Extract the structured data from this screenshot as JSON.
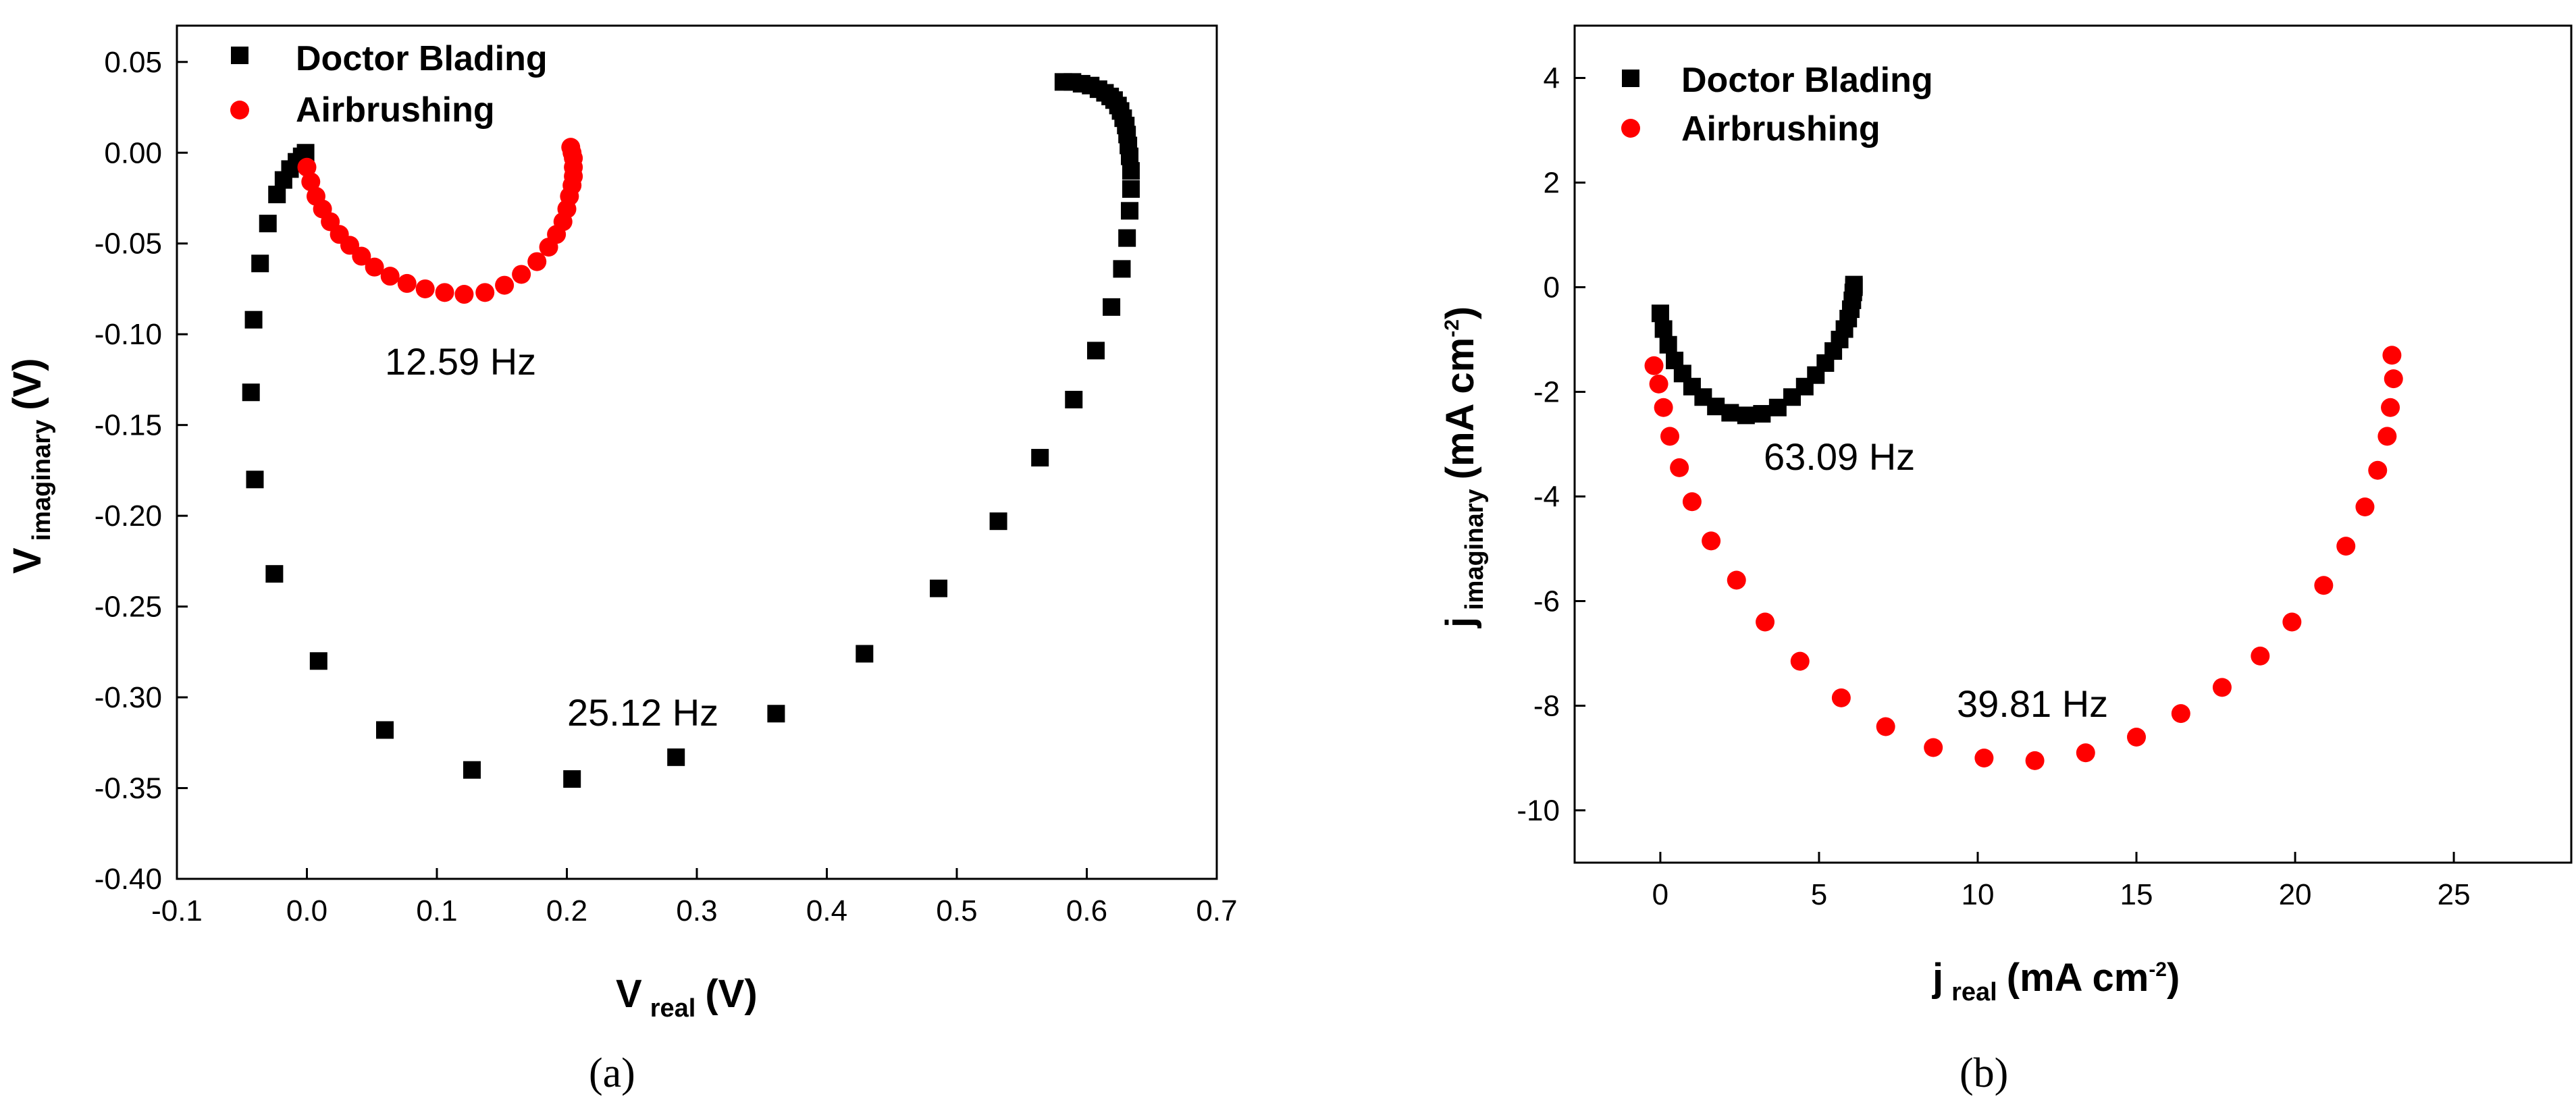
{
  "chart_data": [
    {
      "type": "scatter",
      "panel_label": "(a)",
      "xlabel_main": "V",
      "xlabel_sub": "real",
      "xlabel_unit": "(V)",
      "ylabel_main": "V",
      "ylabel_sub": "imaginary",
      "ylabel_unit": "(V)",
      "xlim": [
        -0.1,
        0.7
      ],
      "ylim": [
        -0.4,
        0.07
      ],
      "xticks": [
        -0.1,
        0.0,
        0.1,
        0.2,
        0.3,
        0.4,
        0.5,
        0.6,
        0.7
      ],
      "xtick_labels": [
        "-0.1",
        "0.0",
        "0.1",
        "0.2",
        "0.3",
        "0.4",
        "0.5",
        "0.6",
        "0.7"
      ],
      "yticks": [
        0.05,
        0.0,
        -0.05,
        -0.1,
        -0.15,
        -0.2,
        -0.25,
        -0.3,
        -0.35,
        -0.4
      ],
      "ytick_labels": [
        "0.05",
        "0.00",
        "-0.05",
        "-0.10",
        "-0.15",
        "-0.20",
        "-0.25",
        "-0.30",
        "-0.35",
        "-0.40"
      ],
      "legend_position": "top-left",
      "annotations": [
        {
          "text": "12.59 Hz",
          "x": 0.0305,
          "y": -0.108
        },
        {
          "text": "25.12 Hz",
          "x": 0.2,
          "y": -0.315
        }
      ],
      "series": [
        {
          "name": "Doctor Blading",
          "marker": "square",
          "color": "#000000",
          "x": [
            -0.001,
            -0.004,
            -0.008,
            -0.013,
            -0.018,
            -0.023,
            -0.03,
            -0.036,
            -0.041,
            -0.043,
            -0.04,
            -0.025,
            0.009,
            0.06,
            0.127,
            0.204,
            0.284,
            0.361,
            0.429,
            0.486,
            0.532,
            0.564,
            0.59,
            0.607,
            0.619,
            0.627,
            0.631,
            0.633,
            0.634,
            0.634,
            0.633,
            0.632,
            0.631,
            0.63,
            0.628,
            0.626,
            0.624,
            0.621,
            0.618,
            0.614,
            0.609,
            0.603,
            0.596,
            0.589,
            0.582
          ],
          "y": [
            0.0,
            -0.002,
            -0.005,
            -0.009,
            -0.015,
            -0.023,
            -0.039,
            -0.061,
            -0.092,
            -0.132,
            -0.18,
            -0.232,
            -0.28,
            -0.318,
            -0.34,
            -0.345,
            -0.333,
            -0.309,
            -0.276,
            -0.24,
            -0.203,
            -0.168,
            -0.136,
            -0.109,
            -0.085,
            -0.064,
            -0.047,
            -0.032,
            -0.02,
            -0.01,
            -0.002,
            0.004,
            0.01,
            0.015,
            0.019,
            0.023,
            0.026,
            0.029,
            0.031,
            0.033,
            0.035,
            0.037,
            0.038,
            0.039,
            0.039
          ]
        },
        {
          "name": "Airbrushing",
          "marker": "circle",
          "color": "#ff0000",
          "x": [
            0.0,
            0.003,
            0.007,
            0.012,
            0.018,
            0.025,
            0.033,
            0.042,
            0.052,
            0.064,
            0.077,
            0.091,
            0.106,
            0.121,
            0.137,
            0.152,
            0.165,
            0.177,
            0.186,
            0.192,
            0.197,
            0.2,
            0.202,
            0.204,
            0.205,
            0.205,
            0.205,
            0.204,
            0.203
          ],
          "y": [
            -0.008,
            -0.016,
            -0.024,
            -0.031,
            -0.038,
            -0.045,
            -0.051,
            -0.057,
            -0.063,
            -0.068,
            -0.072,
            -0.075,
            -0.077,
            -0.078,
            -0.077,
            -0.073,
            -0.067,
            -0.06,
            -0.052,
            -0.045,
            -0.038,
            -0.031,
            -0.024,
            -0.018,
            -0.013,
            -0.008,
            -0.003,
            0.0,
            0.003
          ]
        }
      ]
    },
    {
      "type": "scatter",
      "panel_label": "(b)",
      "xlabel_main": "j",
      "xlabel_sub": "real",
      "xlabel_unit": "(mA cm",
      "xlabel_sup": "-2",
      "xlabel_close": ")",
      "ylabel_main": "j",
      "ylabel_sub": "imaginary",
      "ylabel_unit": "(mA cm",
      "ylabel_sup": "-2",
      "ylabel_close": ")",
      "xlim": [
        -2.7,
        28.7
      ],
      "ylim": [
        -11,
        5
      ],
      "xticks": [
        0,
        5,
        10,
        15,
        20,
        25
      ],
      "xtick_labels": [
        "0",
        "5",
        "10",
        "15",
        "20",
        "25"
      ],
      "yticks": [
        4,
        2,
        0,
        -2,
        -4,
        -6,
        -8,
        -10
      ],
      "ytick_labels": [
        "4",
        "2",
        "0",
        "-2",
        "-4",
        "-6",
        "-8",
        "-10"
      ],
      "legend_position": "top-left",
      "annotations": [
        {
          "text": "63.09 Hz",
          "x": 3.3,
          "y": -3.3
        },
        {
          "text": "39.81 Hz",
          "x": 8.8,
          "y": -8.0
        }
      ],
      "series": [
        {
          "name": "Doctor Blading",
          "marker": "square",
          "color": "#000000",
          "x": [
            0.0,
            0.1,
            0.25,
            0.45,
            0.7,
            1.0,
            1.35,
            1.75,
            2.2,
            2.7,
            3.2,
            3.7,
            4.15,
            4.55,
            4.9,
            5.2,
            5.45,
            5.65,
            5.8,
            5.92,
            6.0,
            6.05,
            6.08,
            6.1,
            6.1
          ],
          "y": [
            -0.5,
            -0.8,
            -1.1,
            -1.4,
            -1.65,
            -1.9,
            -2.1,
            -2.28,
            -2.4,
            -2.45,
            -2.42,
            -2.3,
            -2.1,
            -1.9,
            -1.68,
            -1.45,
            -1.22,
            -1.0,
            -0.8,
            -0.6,
            -0.42,
            -0.25,
            -0.1,
            0.0,
            0.05
          ]
        },
        {
          "name": "Airbrushing",
          "marker": "circle",
          "color": "#ff0000",
          "x": [
            -0.2,
            -0.05,
            0.1,
            0.3,
            0.6,
            1.0,
            1.6,
            2.4,
            3.3,
            4.4,
            5.7,
            7.1,
            8.6,
            10.2,
            11.8,
            13.4,
            15.0,
            16.4,
            17.7,
            18.9,
            19.9,
            20.9,
            21.6,
            22.2,
            22.6,
            22.9,
            23.0,
            23.1,
            23.05
          ],
          "y": [
            -1.5,
            -1.85,
            -2.3,
            -2.85,
            -3.45,
            -4.1,
            -4.85,
            -5.6,
            -6.4,
            -7.15,
            -7.85,
            -8.4,
            -8.8,
            -9.0,
            -9.05,
            -8.9,
            -8.6,
            -8.15,
            -7.65,
            -7.05,
            -6.4,
            -5.7,
            -4.95,
            -4.2,
            -3.5,
            -2.85,
            -2.3,
            -1.75,
            -1.3
          ]
        }
      ]
    }
  ]
}
